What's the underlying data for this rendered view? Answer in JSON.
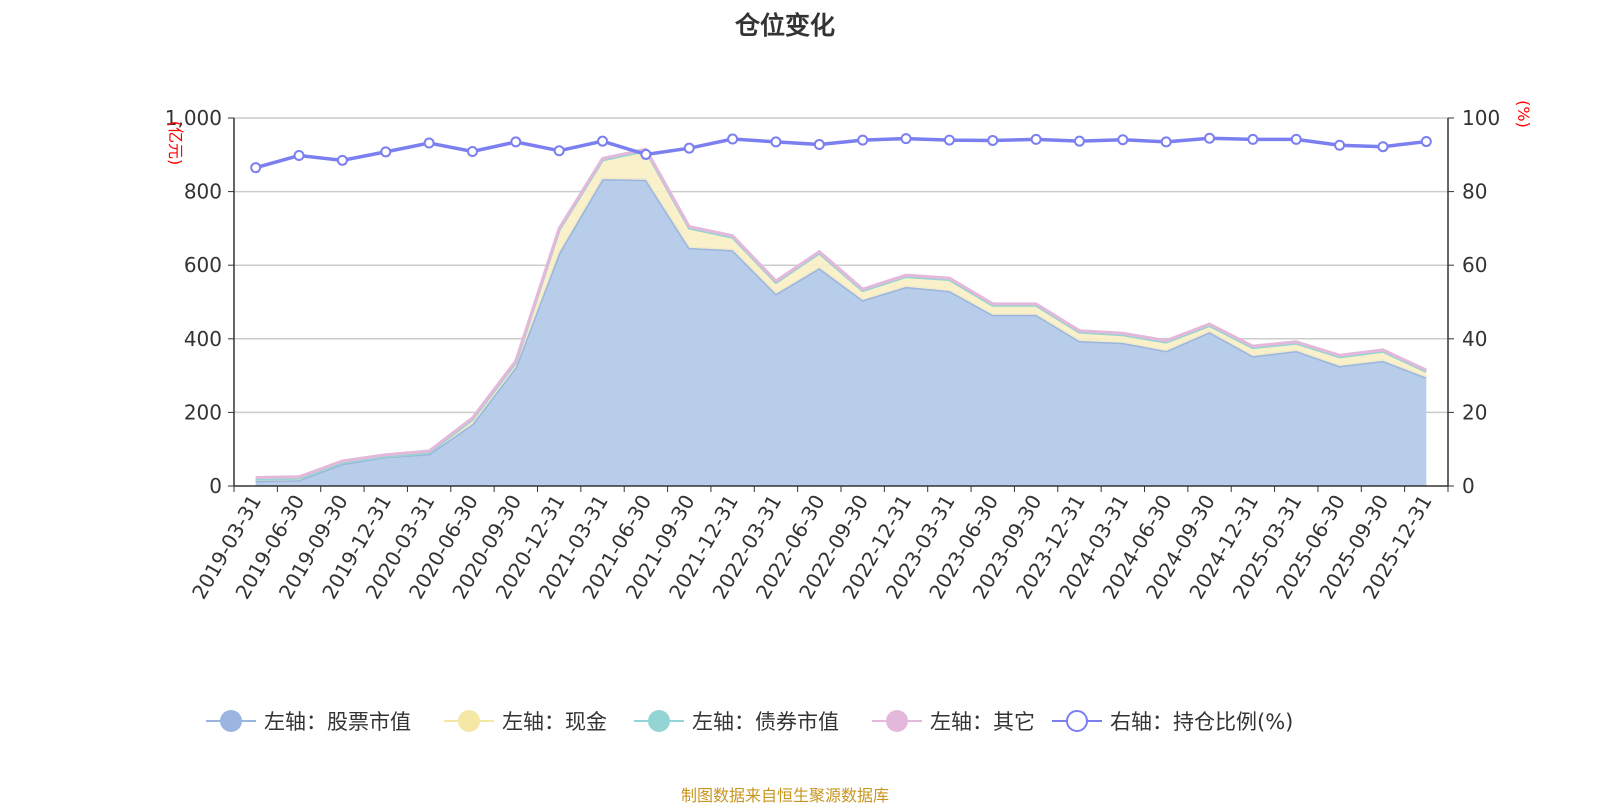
{
  "chart_data": {
    "type": "area",
    "title": "仓位变化",
    "source": "制图数据来自恒生聚源数据库",
    "left_axis_label": "(亿元)",
    "right_axis_label": "(%)",
    "ylim_left": [
      0,
      1000
    ],
    "ylim_right": [
      0,
      100
    ],
    "left_ticks": [
      "0",
      "200",
      "400",
      "600",
      "800",
      "1,000"
    ],
    "right_ticks": [
      "0",
      "20",
      "40",
      "60",
      "80",
      "100"
    ],
    "left_tick_values": [
      0,
      200,
      400,
      600,
      800,
      1000
    ],
    "right_tick_values": [
      0,
      20,
      40,
      60,
      80,
      100
    ],
    "grid": true,
    "legend_position": "bottom",
    "categories": [
      "2019-03-31",
      "2019-06-30",
      "2019-09-30",
      "2019-12-31",
      "2020-03-31",
      "2020-06-30",
      "2020-09-30",
      "2020-12-31",
      "2021-03-31",
      "2021-06-30",
      "2021-09-30",
      "2021-12-31",
      "2022-03-31",
      "2022-06-30",
      "2022-09-30",
      "2022-12-31",
      "2023-03-31",
      "2023-06-30",
      "2023-09-30",
      "2023-12-31",
      "2024-03-31",
      "2024-06-30",
      "2024-09-30",
      "2024-12-31",
      "2025-03-31",
      "2025-06-30",
      "2025-09-30",
      "2025-12-31"
    ],
    "series": [
      {
        "name": "左轴：股票市值",
        "axis": "left",
        "stack": true,
        "color": "#9ab5e0",
        "fill": "#b8cdea",
        "values": [
          14,
          16,
          60,
          79,
          87,
          168,
          323,
          633,
          834,
          832,
          647,
          641,
          522,
          592,
          505,
          541,
          530,
          465,
          465,
          394,
          389,
          367,
          418,
          353,
          367,
          326,
          340,
          295
        ]
      },
      {
        "name": "左轴：现金",
        "axis": "left",
        "stack": true,
        "color": "#f5e7a5",
        "fill": "#faf0c5",
        "values": [
          5,
          5,
          4,
          2,
          4,
          13,
          13,
          63,
          52,
          79,
          54,
          35,
          31,
          41,
          26,
          28,
          31,
          26,
          26,
          24,
          22,
          24,
          18,
          23,
          21,
          25,
          26,
          16
        ]
      },
      {
        "name": "左轴：债券市值",
        "axis": "left",
        "stack": true,
        "color": "#93d4d4",
        "fill": "#c5e9e9",
        "values": [
          0,
          0,
          0,
          0,
          0,
          0,
          0,
          0,
          0,
          0,
          0,
          0,
          0,
          0,
          0,
          0,
          0,
          0,
          0,
          0,
          0,
          0,
          0,
          0,
          0,
          0,
          0,
          0
        ]
      },
      {
        "name": "左轴：其它",
        "axis": "left",
        "stack": true,
        "color": "#e4b8da",
        "fill": "#f0d6ea",
        "values": [
          4,
          4,
          4,
          4,
          4,
          4,
          4,
          4,
          4,
          4,
          4,
          4,
          4,
          4,
          4,
          4,
          4,
          4,
          4,
          4,
          4,
          4,
          4,
          4,
          4,
          4,
          4,
          4
        ]
      },
      {
        "name": "右轴：持仓比例(%)",
        "axis": "right",
        "stack": false,
        "color": "#7b7ff0",
        "values": [
          86.5,
          89.8,
          88.5,
          90.8,
          93.2,
          90.9,
          93.5,
          91.1,
          93.7,
          90.1,
          91.8,
          94.3,
          93.5,
          92.8,
          94.0,
          94.4,
          94.0,
          93.9,
          94.2,
          93.7,
          94.1,
          93.5,
          94.5,
          94.2,
          94.2,
          92.6,
          92.2,
          93.6
        ]
      }
    ]
  }
}
